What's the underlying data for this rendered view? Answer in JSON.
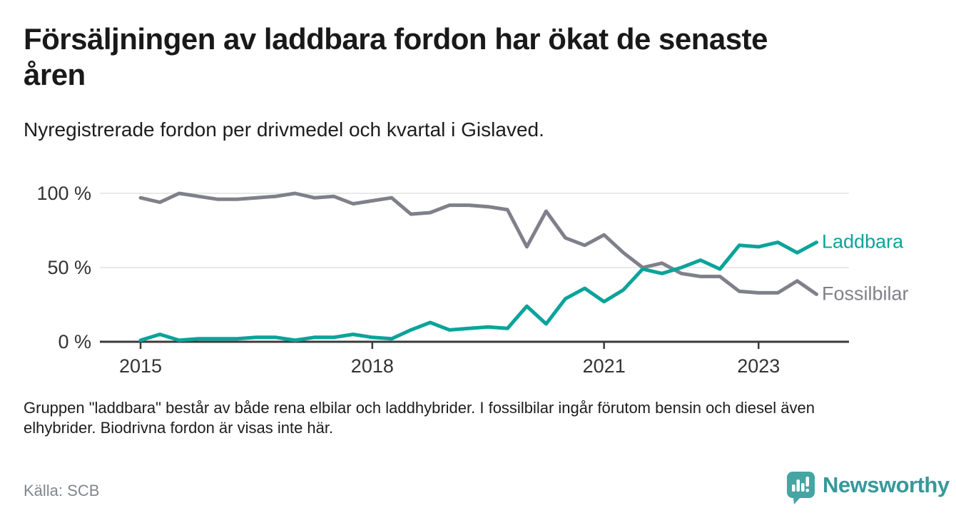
{
  "header": {
    "title_line1": "Försäljningen av laddbara fordon har ökat de senaste",
    "title_line2": "åren",
    "subtitle": "Nyregistrerade fordon per drivmedel och kvartal i Gislaved."
  },
  "chart_data": {
    "type": "line",
    "title": "Nyregistrerade fordon per drivmedel och kvartal i Gislaved",
    "x_unit": "quarter",
    "categories": [
      "2015 Q1",
      "2015 Q2",
      "2015 Q3",
      "2015 Q4",
      "2016 Q1",
      "2016 Q2",
      "2016 Q3",
      "2016 Q4",
      "2017 Q1",
      "2017 Q2",
      "2017 Q3",
      "2017 Q4",
      "2018 Q1",
      "2018 Q2",
      "2018 Q3",
      "2018 Q4",
      "2019 Q1",
      "2019 Q2",
      "2019 Q3",
      "2019 Q4",
      "2020 Q1",
      "2020 Q2",
      "2020 Q3",
      "2020 Q4",
      "2021 Q1",
      "2021 Q2",
      "2021 Q3",
      "2021 Q4",
      "2022 Q1",
      "2022 Q2",
      "2022 Q3",
      "2022 Q4",
      "2023 Q1",
      "2023 Q2",
      "2023 Q3",
      "2023 Q4"
    ],
    "series": [
      {
        "name": "Fossilbilar",
        "color": "#80808a",
        "values": [
          97,
          94,
          100,
          98,
          96,
          96,
          97,
          98,
          100,
          97,
          98,
          93,
          95,
          97,
          86,
          87,
          92,
          92,
          91,
          89,
          64,
          88,
          70,
          65,
          72,
          60,
          50,
          53,
          46,
          44,
          44,
          34,
          33,
          33,
          41,
          32
        ]
      },
      {
        "name": "Laddbara",
        "color": "#0ba39a",
        "values": [
          1,
          5,
          1,
          2,
          2,
          2,
          3,
          3,
          1,
          3,
          3,
          5,
          3,
          2,
          8,
          13,
          8,
          9,
          10,
          9,
          24,
          12,
          29,
          36,
          27,
          35,
          49,
          46,
          50,
          55,
          49,
          65,
          64,
          67,
          60,
          67
        ]
      }
    ],
    "y_axis": {
      "unit": "%",
      "range": [
        0,
        100
      ],
      "labels": [
        {
          "value": 100,
          "label": "100 %"
        },
        {
          "value": 50,
          "label": "50 %"
        },
        {
          "value": 0,
          "label": "0 %"
        }
      ],
      "gridlines": [
        100,
        50
      ]
    },
    "x_axis": {
      "ticks": [
        {
          "index": 0,
          "label": "2015"
        },
        {
          "index": 12,
          "label": "2018"
        },
        {
          "index": 24,
          "label": "2021"
        },
        {
          "index": 32,
          "label": "2023"
        }
      ]
    },
    "legend": {
      "position": "right-of-line-end",
      "entries": [
        "Laddbara",
        "Fossilbilar"
      ]
    }
  },
  "footnote": "Gruppen \"laddbara\" består av både rena elbilar och laddhybrider. I fossilbilar ingår förutom bensin och diesel även elhybrider. Biodrivna fordon är visas inte här.",
  "source": "Källa: SCB",
  "branding": {
    "name": "Newsworthy",
    "accent_color": "#37989a",
    "icon_color": "#45a5a3"
  }
}
